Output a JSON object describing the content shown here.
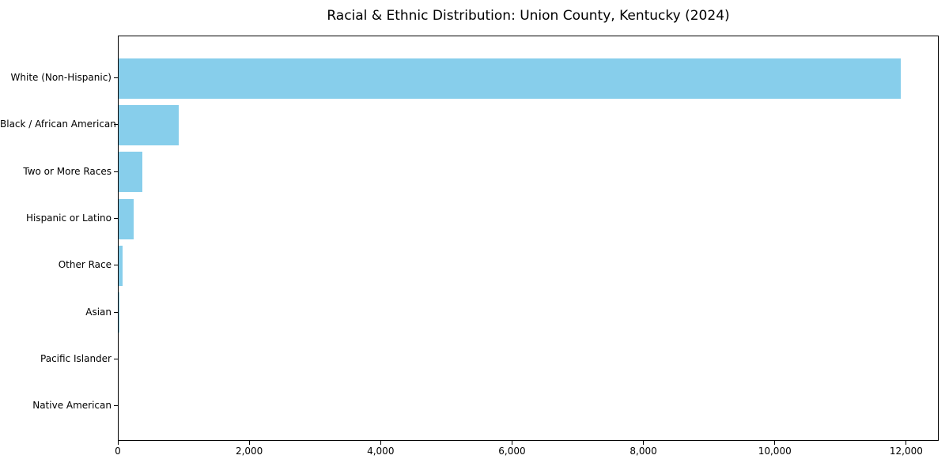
{
  "chart_data": {
    "type": "bar",
    "orientation": "horizontal",
    "title": "Racial & Ethnic Distribution: Union County, Kentucky (2024)",
    "categories": [
      "White (Non-Hispanic)",
      "Black / African American",
      "Two or More Races",
      "Hispanic or Latino",
      "Other Race",
      "Asian",
      "Pacific Islander",
      "Native American"
    ],
    "values": [
      11900,
      920,
      360,
      230,
      55,
      15,
      5,
      3
    ],
    "xlabel": "",
    "ylabel": "",
    "xlim": [
      0,
      12495
    ],
    "x_ticks": [
      0,
      2000,
      4000,
      6000,
      8000,
      10000,
      12000
    ],
    "x_tick_labels": [
      "0",
      "2,000",
      "4,000",
      "6,000",
      "8,000",
      "10,000",
      "12,000"
    ],
    "bar_color": "#87CEEB",
    "spine_color": "#000000",
    "grid": false,
    "legend": false
  }
}
